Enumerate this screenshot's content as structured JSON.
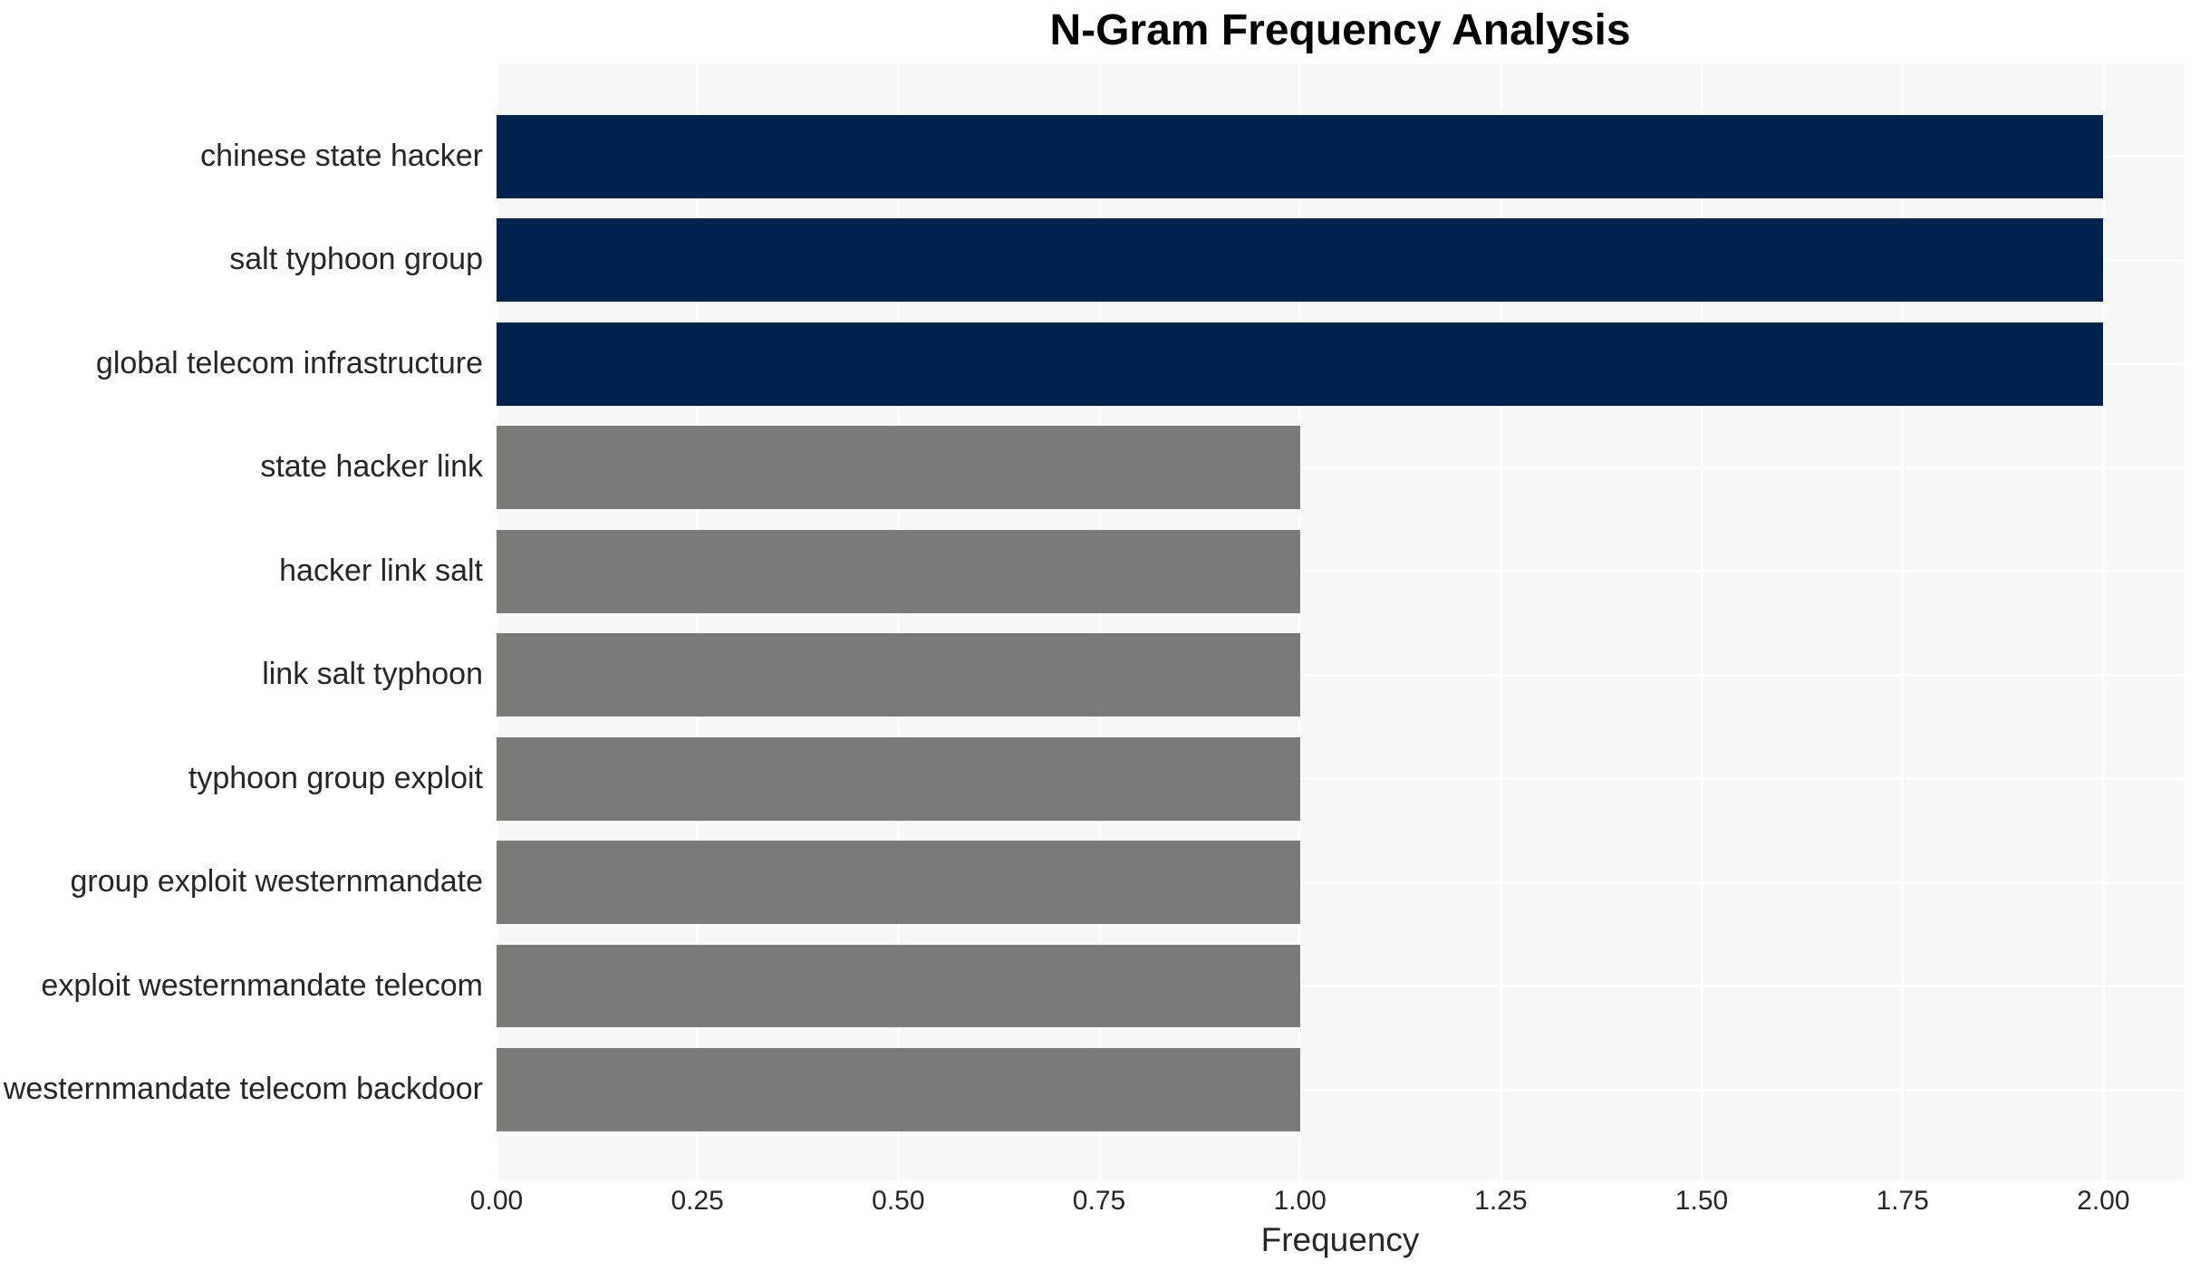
{
  "chart_data": {
    "type": "bar",
    "orientation": "horizontal",
    "title": "N-Gram Frequency Analysis",
    "xlabel": "Frequency",
    "ylabel": "",
    "categories": [
      "chinese state hacker",
      "salt typhoon group",
      "global telecom infrastructure",
      "state hacker link",
      "hacker link salt",
      "link salt typhoon",
      "typhoon group exploit",
      "group exploit westernmandate",
      "exploit westernmandate telecom",
      "westernmandate telecom backdoor"
    ],
    "values": [
      2,
      2,
      2,
      1,
      1,
      1,
      1,
      1,
      1,
      1
    ],
    "bar_colors": [
      "#00224E",
      "#00224E",
      "#00224E",
      "#7A7A77",
      "#7A7A77",
      "#7A7A77",
      "#7A7A77",
      "#7A7A77",
      "#7A7A77",
      "#7A7A77"
    ],
    "xticks": [
      "0.00",
      "0.25",
      "0.50",
      "0.75",
      "1.00",
      "1.25",
      "1.50",
      "1.75",
      "2.00"
    ],
    "xtick_values": [
      0,
      0.25,
      0.5,
      0.75,
      1.0,
      1.25,
      1.5,
      1.75,
      2.0
    ],
    "xlim": [
      0,
      2.1
    ],
    "grid": true,
    "legend": false,
    "colors": {
      "accent_high": "#00224E",
      "accent_low": "#7A7A77",
      "plot_background": "#F7F7F7",
      "gridline": "#FFFFFF",
      "text": "#262626"
    }
  }
}
